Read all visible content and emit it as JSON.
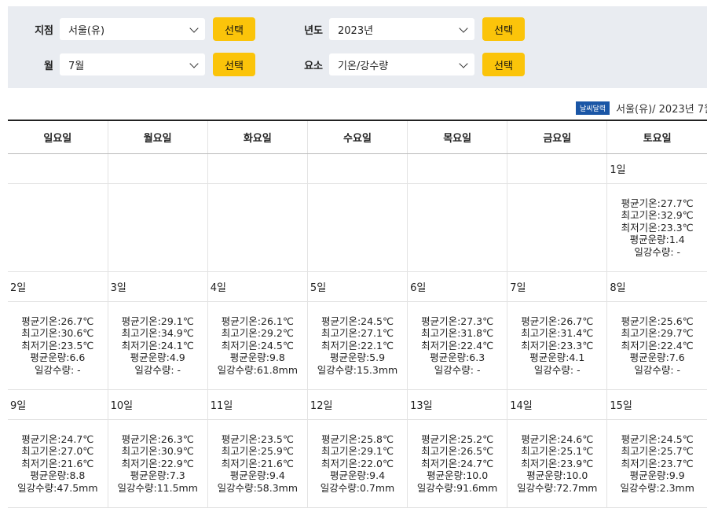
{
  "filters": {
    "station": {
      "label": "지점",
      "value": "서울(유)",
      "button": "선택"
    },
    "year": {
      "label": "년도",
      "value": "2023년",
      "button": "선택"
    },
    "month": {
      "label": "월",
      "value": "7월",
      "button": "선택"
    },
    "element": {
      "label": "요소",
      "value": "기온/강수량",
      "button": "선택"
    }
  },
  "caption": {
    "badge": "날씨달력",
    "text": "서울(유)/ 2023년 7월"
  },
  "weekdays": [
    "일요일",
    "월요일",
    "화요일",
    "수요일",
    "목요일",
    "금요일",
    "토요일"
  ],
  "weeks": [
    {
      "days": [
        "",
        "",
        "",
        "",
        "",
        "",
        "1일"
      ],
      "data": [
        null,
        null,
        null,
        null,
        null,
        null,
        [
          "평균기온:27.7℃",
          "최고기온:32.9℃",
          "최저기온:23.3℃",
          "평균운량:1.4",
          "일강수량: -"
        ]
      ]
    },
    {
      "days": [
        "2일",
        "3일",
        "4일",
        "5일",
        "6일",
        "7일",
        "8일"
      ],
      "data": [
        [
          "평균기온:26.7℃",
          "최고기온:30.6℃",
          "최저기온:23.5℃",
          "평균운량:6.6",
          "일강수량: -"
        ],
        [
          "평균기온:29.1℃",
          "최고기온:34.9℃",
          "최저기온:24.1℃",
          "평균운량:4.9",
          "일강수량: -"
        ],
        [
          "평균기온:26.1℃",
          "최고기온:29.2℃",
          "최저기온:24.5℃",
          "평균운량:9.8",
          "일강수량:61.8mm"
        ],
        [
          "평균기온:24.5℃",
          "최고기온:27.1℃",
          "최저기온:22.1℃",
          "평균운량:5.9",
          "일강수량:15.3mm"
        ],
        [
          "평균기온:27.3℃",
          "최고기온:31.8℃",
          "최저기온:22.4℃",
          "평균운량:6.3",
          "일강수량: -"
        ],
        [
          "평균기온:26.7℃",
          "최고기온:31.4℃",
          "최저기온:23.3℃",
          "평균운량:4.1",
          "일강수량: -"
        ],
        [
          "평균기온:25.6℃",
          "최고기온:29.7℃",
          "최저기온:22.4℃",
          "평균운량:7.6",
          "일강수량: -"
        ]
      ]
    },
    {
      "days": [
        "9일",
        "10일",
        "11일",
        "12일",
        "13일",
        "14일",
        "15일"
      ],
      "data": [
        [
          "평균기온:24.7℃",
          "최고기온:27.0℃",
          "최저기온:21.6℃",
          "평균운량:8.8",
          "일강수량:47.5mm"
        ],
        [
          "평균기온:26.3℃",
          "최고기온:30.9℃",
          "최저기온:22.9℃",
          "평균운량:7.3",
          "일강수량:11.5mm"
        ],
        [
          "평균기온:23.5℃",
          "최고기온:25.9℃",
          "최저기온:21.6℃",
          "평균운량:9.4",
          "일강수량:58.3mm"
        ],
        [
          "평균기온:25.8℃",
          "최고기온:29.1℃",
          "최저기온:22.0℃",
          "평균운량:9.4",
          "일강수량:0.7mm"
        ],
        [
          "평균기온:25.2℃",
          "최고기온:26.5℃",
          "최저기온:24.7℃",
          "평균운량:10.0",
          "일강수량:91.6mm"
        ],
        [
          "평균기온:24.6℃",
          "최고기온:25.1℃",
          "최저기온:23.9℃",
          "평균운량:10.0",
          "일강수량:72.7mm"
        ],
        [
          "평균기온:24.5℃",
          "최고기온:25.7℃",
          "최저기온:23.7℃",
          "평균운량:9.9",
          "일강수량:2.3mm"
        ]
      ]
    }
  ]
}
